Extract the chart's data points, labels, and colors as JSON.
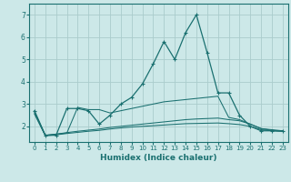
{
  "xlabel": "Humidex (Indice chaleur)",
  "xlim": [
    -0.5,
    23.5
  ],
  "ylim": [
    1.3,
    7.5
  ],
  "yticks": [
    2,
    3,
    4,
    5,
    6,
    7
  ],
  "xticks": [
    0,
    1,
    2,
    3,
    4,
    5,
    6,
    7,
    8,
    9,
    10,
    11,
    12,
    13,
    14,
    15,
    16,
    17,
    18,
    19,
    20,
    21,
    22,
    23
  ],
  "bg_color": "#cce8e8",
  "grid_color": "#aacccc",
  "line_color": "#1a7070",
  "series": [
    {
      "x": [
        0,
        1,
        2,
        3,
        4,
        5,
        6,
        7,
        8,
        9,
        10,
        11,
        12,
        13,
        14,
        15,
        16,
        17,
        18,
        19,
        20,
        21,
        22,
        23
      ],
      "y": [
        2.7,
        1.6,
        1.6,
        2.8,
        2.8,
        2.7,
        2.1,
        2.5,
        3.0,
        3.3,
        3.9,
        4.8,
        5.8,
        5.0,
        6.2,
        7.0,
        5.3,
        3.5,
        3.5,
        2.5,
        2.0,
        1.8,
        1.8,
        1.8
      ],
      "marker": "+"
    },
    {
      "x": [
        0,
        1,
        2,
        3,
        4,
        5,
        6,
        7,
        8,
        9,
        10,
        11,
        12,
        13,
        14,
        15,
        16,
        17,
        18,
        19,
        20,
        21,
        22,
        23
      ],
      "y": [
        2.65,
        1.6,
        1.65,
        1.7,
        2.85,
        2.75,
        2.75,
        2.6,
        2.7,
        2.8,
        2.9,
        3.0,
        3.1,
        3.15,
        3.2,
        3.25,
        3.3,
        3.35,
        2.4,
        2.3,
        2.1,
        1.9,
        1.85,
        1.8
      ],
      "marker": null
    },
    {
      "x": [
        0,
        1,
        2,
        3,
        4,
        5,
        6,
        7,
        8,
        9,
        10,
        11,
        12,
        13,
        14,
        15,
        16,
        17,
        18,
        19,
        20,
        21,
        22,
        23
      ],
      "y": [
        2.6,
        1.6,
        1.65,
        1.72,
        1.78,
        1.83,
        1.88,
        1.95,
        2.0,
        2.05,
        2.1,
        2.15,
        2.2,
        2.25,
        2.3,
        2.33,
        2.35,
        2.37,
        2.3,
        2.25,
        2.1,
        1.9,
        1.82,
        1.78
      ],
      "marker": null
    },
    {
      "x": [
        0,
        1,
        2,
        3,
        4,
        5,
        6,
        7,
        8,
        9,
        10,
        11,
        12,
        13,
        14,
        15,
        16,
        17,
        18,
        19,
        20,
        21,
        22,
        23
      ],
      "y": [
        2.55,
        1.58,
        1.62,
        1.68,
        1.73,
        1.78,
        1.82,
        1.88,
        1.93,
        1.97,
        2.0,
        2.03,
        2.06,
        2.09,
        2.12,
        2.13,
        2.14,
        2.15,
        2.12,
        2.08,
        2.0,
        1.85,
        1.8,
        1.77
      ],
      "marker": null
    }
  ]
}
